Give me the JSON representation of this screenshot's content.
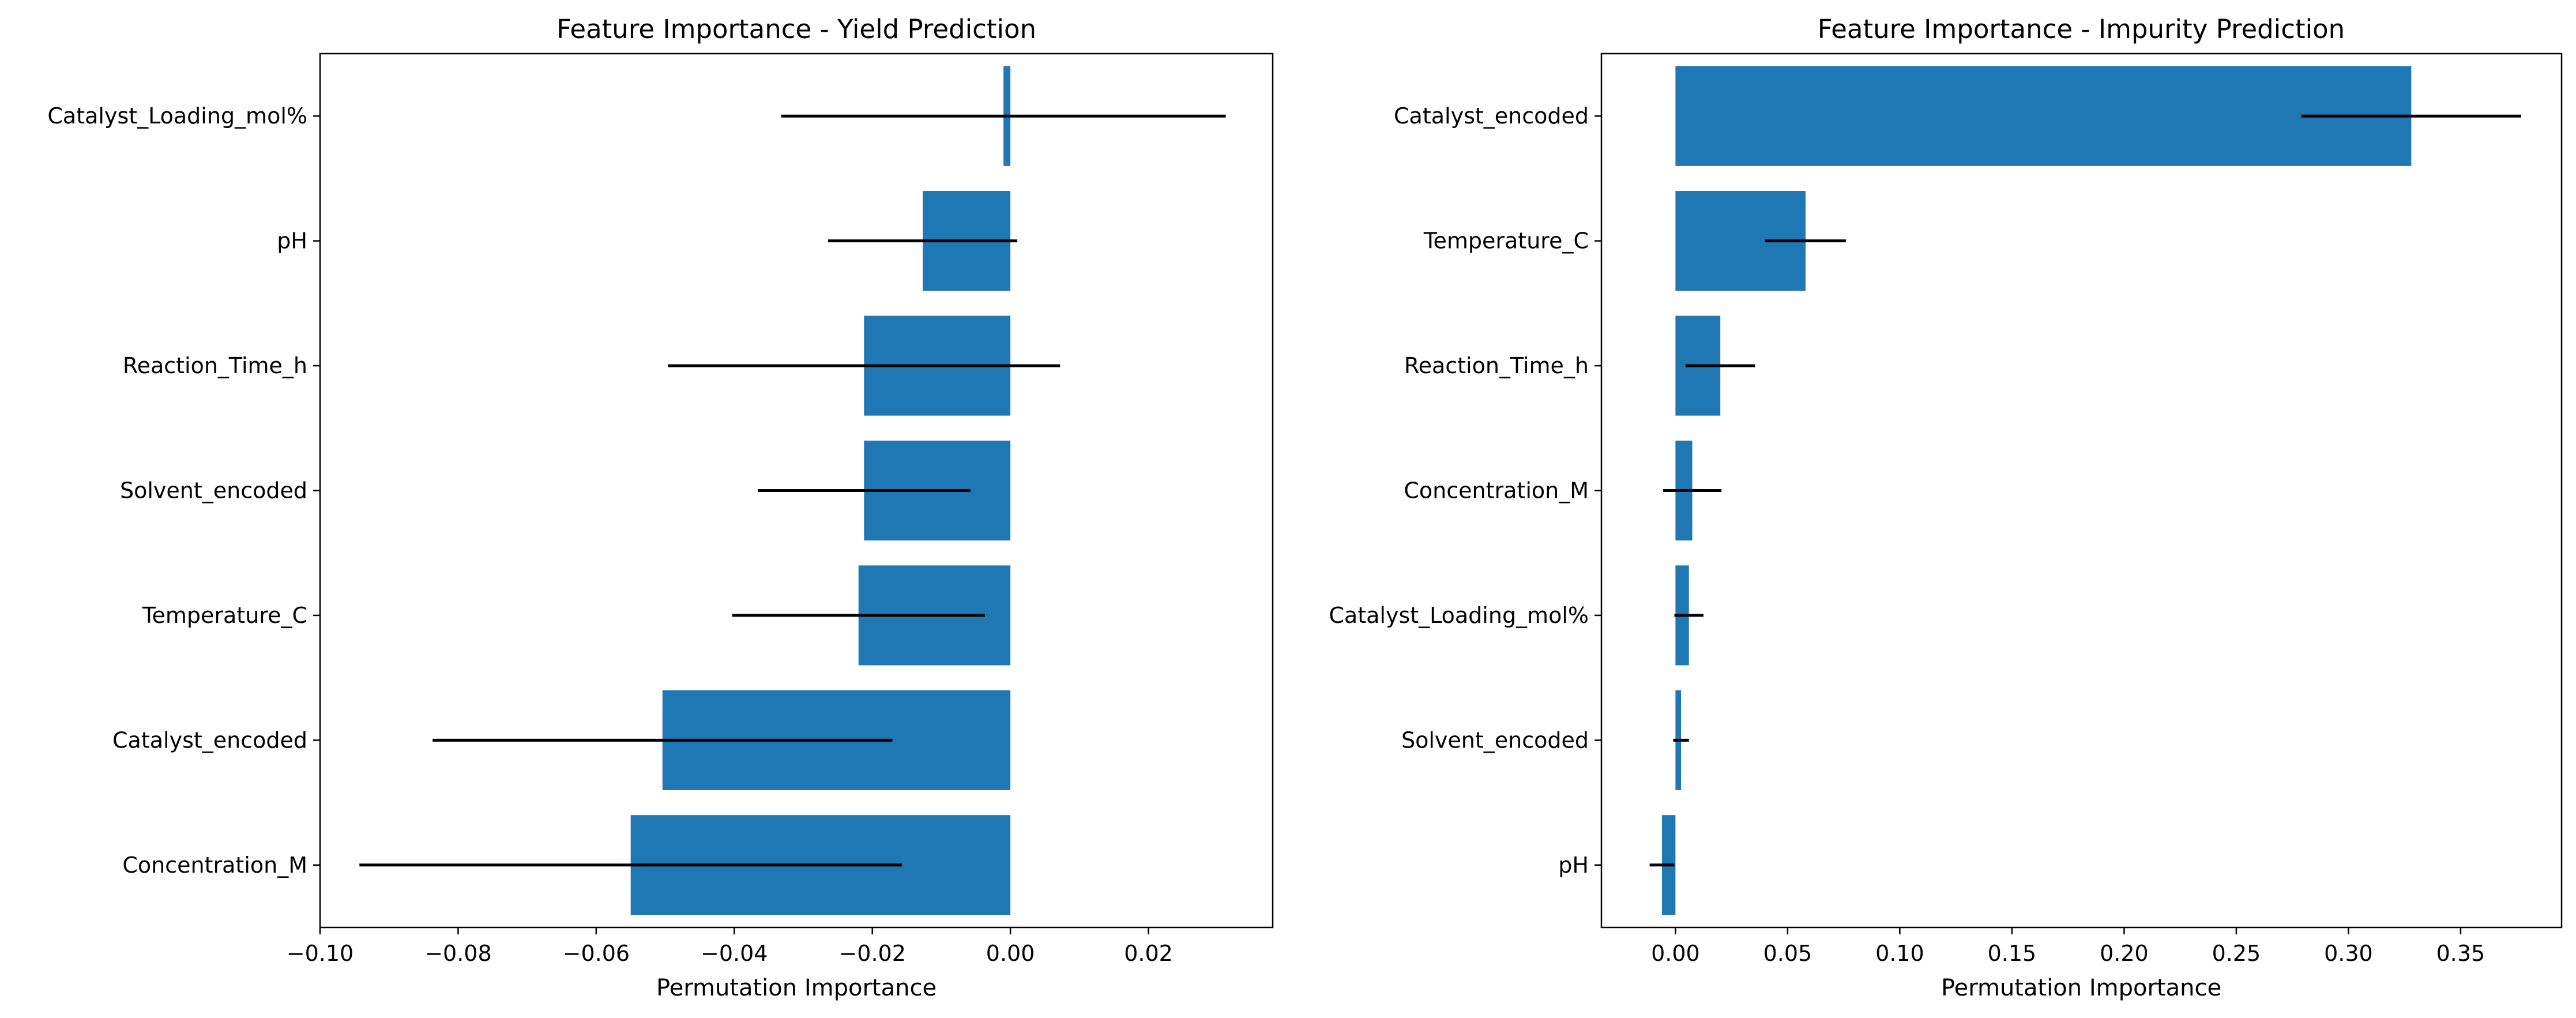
{
  "chart_data": [
    {
      "type": "bar",
      "orientation": "horizontal",
      "title": "Feature Importance - Yield Prediction",
      "xlabel": "Permutation Importance",
      "ylabel": "",
      "xlim": [
        -0.1,
        0.038
      ],
      "xticks": [
        -0.1,
        -0.08,
        -0.06,
        -0.04,
        -0.02,
        0.0,
        0.02
      ],
      "xtick_labels": [
        "−0.10",
        "−0.08",
        "−0.06",
        "−0.04",
        "−0.02",
        "0.00",
        "0.02"
      ],
      "categories": [
        "Catalyst_Loading_mol%",
        "pH",
        "Reaction_Time_h",
        "Solvent_encoded",
        "Temperature_C",
        "Catalyst_encoded",
        "Concentration_M"
      ],
      "values": [
        -0.001,
        -0.0127,
        -0.0212,
        -0.0212,
        -0.022,
        -0.0504,
        -0.055
      ],
      "errors": [
        0.0322,
        0.0137,
        0.0284,
        0.0154,
        0.0183,
        0.0333,
        0.0393
      ],
      "bar_color": "#1f77b4",
      "error_color": "#000000",
      "grid": false,
      "legend": "none"
    },
    {
      "type": "bar",
      "orientation": "horizontal",
      "title": "Feature Importance - Impurity Prediction",
      "xlabel": "Permutation Importance",
      "ylabel": "",
      "xlim": [
        -0.033,
        0.395
      ],
      "xticks": [
        0.0,
        0.05,
        0.1,
        0.15,
        0.2,
        0.25,
        0.3,
        0.35
      ],
      "xtick_labels": [
        "0.00",
        "0.05",
        "0.10",
        "0.15",
        "0.20",
        "0.25",
        "0.30",
        "0.35"
      ],
      "categories": [
        "Catalyst_encoded",
        "Temperature_C",
        "Reaction_Time_h",
        "Concentration_M",
        "Catalyst_Loading_mol%",
        "Solvent_encoded",
        "pH"
      ],
      "values": [
        0.328,
        0.058,
        0.02,
        0.0075,
        0.006,
        0.0025,
        -0.006
      ],
      "errors": [
        0.049,
        0.018,
        0.0155,
        0.013,
        0.0065,
        0.0035,
        0.0055
      ],
      "bar_color": "#1f77b4",
      "error_color": "#000000",
      "grid": false,
      "legend": "none"
    }
  ]
}
